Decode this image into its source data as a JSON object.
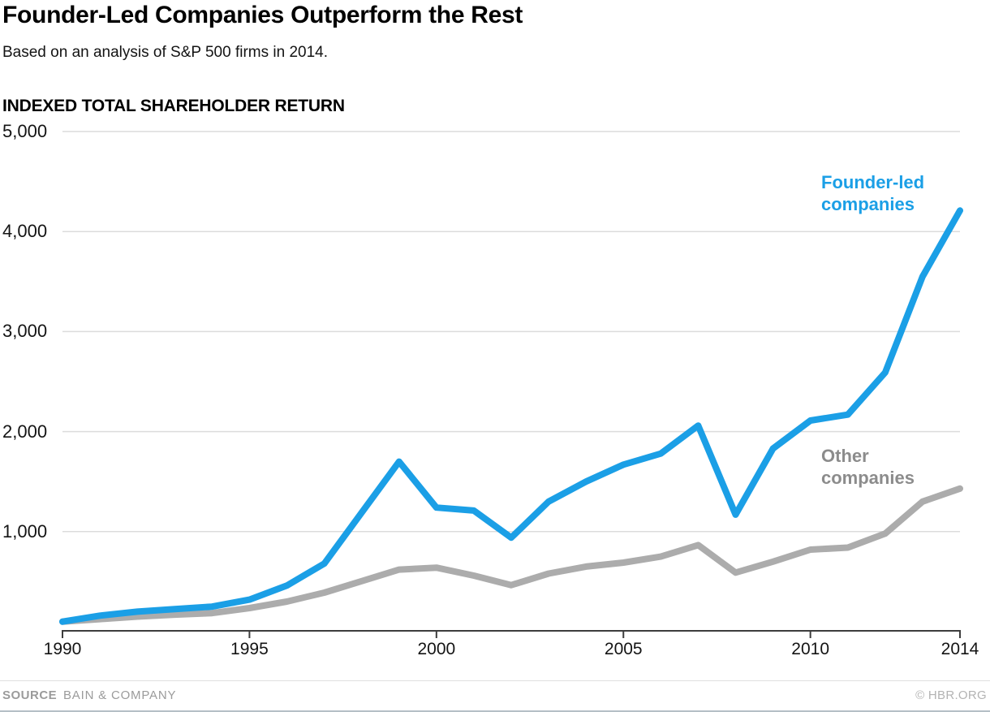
{
  "header": {
    "title": "Founder-Led Companies Outperform the Rest",
    "subtitle": "Based on an analysis of S&P 500 firms in 2014."
  },
  "chart_data": {
    "type": "line",
    "title": "INDEXED TOTAL SHAREHOLDER RETURN",
    "xlabel": "",
    "ylabel": "Indexed total shareholder return",
    "xlim": [
      1990,
      2014
    ],
    "ylim": [
      0,
      5000
    ],
    "grid": "horizontal",
    "legend_position": "inline-labels",
    "x": [
      1990,
      1991,
      1992,
      1993,
      1994,
      1995,
      1996,
      1997,
      1998,
      1999,
      2000,
      2001,
      2002,
      2003,
      2004,
      2005,
      2006,
      2007,
      2008,
      2009,
      2010,
      2011,
      2012,
      2013,
      2014
    ],
    "series": [
      {
        "id": "founder-led",
        "name": "Founder-led companies",
        "label_lines": [
          "Founder-led",
          "companies"
        ],
        "color": "#1b9fe6",
        "label_color": "#1b9fe6",
        "values": [
          100,
          160,
          200,
          225,
          250,
          320,
          460,
          680,
          1190,
          1700,
          1240,
          1210,
          940,
          1300,
          1500,
          1670,
          1780,
          2060,
          1170,
          1830,
          2110,
          2170,
          2590,
          3550,
          4210
        ]
      },
      {
        "id": "other",
        "name": "Other companies",
        "label_lines": [
          "Other",
          "companies"
        ],
        "color": "#acacac",
        "label_color": "#8c8c8c",
        "values": [
          100,
          125,
          150,
          170,
          185,
          235,
          300,
          390,
          505,
          620,
          640,
          560,
          465,
          580,
          650,
          690,
          750,
          865,
          590,
          700,
          820,
          840,
          980,
          1300,
          1430
        ]
      }
    ],
    "x_ticks": [
      {
        "label": "1990",
        "value": 1990
      },
      {
        "label": "1995",
        "value": 1995
      },
      {
        "label": "2000",
        "value": 2000
      },
      {
        "label": "2005",
        "value": 2005
      },
      {
        "label": "2010",
        "value": 2010
      },
      {
        "label": "2014",
        "value": 2014
      }
    ],
    "y_ticks": [
      {
        "label": "1,000",
        "value": 1000
      },
      {
        "label": "2,000",
        "value": 2000
      },
      {
        "label": "3,000",
        "value": 3000
      },
      {
        "label": "4,000",
        "value": 4000
      },
      {
        "label": "5,000",
        "value": 5000
      }
    ]
  },
  "footer": {
    "source_label": "SOURCE",
    "source_value": "BAIN & COMPANY",
    "credit": "© HBR.ORG"
  },
  "colors": {
    "accent_blue": "#1b9fe6",
    "line_gray": "#acacac",
    "other_label_gray": "#8c8c8c",
    "gridline": "#dcdcdc",
    "axis": "#3d3d3d",
    "footer_gray": "#9b9b9b",
    "credit_gray": "#b3b3b3",
    "bottom_border": "#b5bfc6"
  }
}
